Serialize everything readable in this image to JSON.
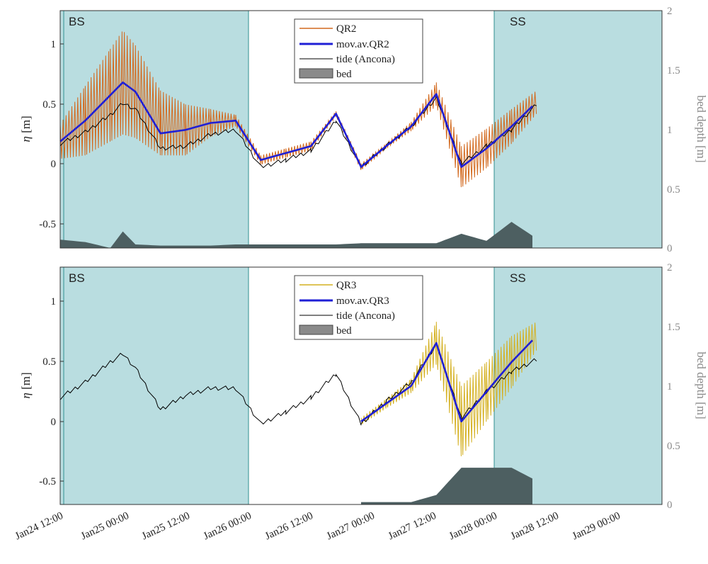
{
  "figure": {
    "x_ticks": [
      "Jan24 12:00",
      "Jan25 00:00",
      "Jan25 12:00",
      "Jan26 00:00",
      "Jan26 12:00",
      "Jan27 00:00",
      "Jan27 12:00",
      "Jan28 00:00",
      "Jan28 12:00",
      "Jan29 00:00"
    ],
    "y_ticks_left": [
      "1",
      "0.5",
      "0",
      "-0.5"
    ],
    "y_ticks_right": [
      "2",
      "1.5",
      "1",
      "0.5",
      "0"
    ],
    "ylabel_left_symbol": "η",
    "ylabel_left_unit": " [m]",
    "ylabel_right": "bed depth [m]",
    "region_bs": "BS",
    "region_ss": "SS",
    "colors": {
      "shade": "#b9dde0",
      "region_edge": "#2f8f8f",
      "mov_av": "#1f1fd6",
      "tide": "#000000",
      "bed": "#4d5f61",
      "qr2": "#d2691e",
      "qr3": "#d4b020",
      "right_axis": "#8a8a8a"
    }
  },
  "chart_data": [
    {
      "type": "line",
      "panel": "top",
      "xlabel": "",
      "ylabel": "η [m]",
      "ylabel_right": "bed depth [m]",
      "ylim": [
        -0.7,
        1.35
      ],
      "ylim_right": [
        0,
        2
      ],
      "xlim": [
        "Jan24 12:00",
        "Jan29 12:00"
      ],
      "x_hours": [
        12,
        18,
        24,
        27,
        30,
        36,
        42,
        48,
        54,
        60,
        66,
        72,
        78,
        84,
        90,
        96,
        102,
        108,
        114,
        120,
        126,
        132,
        138,
        144,
        150,
        156
      ],
      "shaded_regions": [
        {
          "label": "BS",
          "start_hour": 12,
          "end_hour": 48
        },
        {
          "label": "SS",
          "start_hour": 96,
          "end_hour": 156
        }
      ],
      "legend": [
        "QR2",
        "mov.av.QR2",
        "tide (Ancona)",
        "bed"
      ],
      "series": [
        {
          "name": "QR2",
          "kind": "oscillating",
          "center": [
            0.22,
            0.4,
            0.62,
            0.73,
            0.65,
            0.38,
            0.32,
            0.38,
            0.4,
            0.06,
            0.12,
            0.18,
            0.46,
            0.0,
            0.18,
            0.35,
            0.63,
            0.0,
            0.16,
            0.35,
            0.56,
            null,
            null,
            null,
            null,
            null
          ],
          "amplitude": [
            0.15,
            0.3,
            0.4,
            0.45,
            0.4,
            0.28,
            0.22,
            0.12,
            0.05,
            0.04,
            0.04,
            0.04,
            0.02,
            0.03,
            0.02,
            0.04,
            0.1,
            0.18,
            0.17,
            0.15,
            0.1,
            null,
            null,
            null,
            null,
            null
          ]
        },
        {
          "name": "mov.av.QR2",
          "values": [
            0.22,
            0.4,
            0.62,
            0.73,
            0.65,
            0.29,
            0.32,
            0.38,
            0.4,
            0.06,
            0.12,
            0.18,
            0.46,
            0.0,
            0.18,
            0.35,
            0.63,
            0.0,
            0.16,
            0.35,
            0.56,
            null,
            null,
            null,
            null,
            null
          ]
        },
        {
          "name": "tide (Ancona)",
          "values": [
            0.2,
            0.3,
            0.45,
            0.55,
            0.5,
            0.16,
            0.18,
            0.28,
            0.32,
            0.0,
            0.06,
            0.14,
            0.4,
            0.0,
            0.18,
            0.35,
            0.6,
            0.03,
            0.18,
            0.32,
            0.54,
            null,
            null,
            null,
            null,
            null
          ]
        },
        {
          "name": "bed",
          "values": [
            0.07,
            0.05,
            0.0,
            0.14,
            0.03,
            0.02,
            0.02,
            0.02,
            0.03,
            0.03,
            0.03,
            0.03,
            0.03,
            0.04,
            0.04,
            0.04,
            0.04,
            0.12,
            0.06,
            0.22,
            0.08,
            null,
            null,
            null,
            null,
            null
          ]
        }
      ]
    },
    {
      "type": "line",
      "panel": "bottom",
      "xlabel": "",
      "ylabel": "η [m]",
      "ylabel_right": "bed depth [m]",
      "ylim": [
        -0.7,
        1.3
      ],
      "ylim_right": [
        0,
        2
      ],
      "xlim": [
        "Jan24 12:00",
        "Jan29 12:00"
      ],
      "x_hours": [
        12,
        18,
        24,
        27,
        30,
        36,
        42,
        48,
        54,
        60,
        66,
        72,
        78,
        84,
        90,
        96,
        102,
        108,
        114,
        120,
        126,
        132,
        138,
        144,
        150,
        156
      ],
      "shaded_regions": [
        {
          "label": "BS",
          "start_hour": 12,
          "end_hour": 48
        },
        {
          "label": "SS",
          "start_hour": 96,
          "end_hour": 156
        }
      ],
      "legend": [
        "QR3",
        "mov.av.QR3",
        "tide (Ancona)",
        "bed"
      ],
      "series": [
        {
          "name": "QR3",
          "kind": "oscillating",
          "center": [
            null,
            null,
            null,
            null,
            null,
            null,
            null,
            null,
            null,
            null,
            null,
            null,
            null,
            0.0,
            0.15,
            0.3,
            0.66,
            0.0,
            0.25,
            0.5,
            0.72,
            null,
            null,
            null,
            null,
            null
          ],
          "amplitude": [
            null,
            null,
            null,
            null,
            null,
            null,
            null,
            null,
            null,
            null,
            null,
            null,
            null,
            0.03,
            0.04,
            0.06,
            0.18,
            0.3,
            0.25,
            0.22,
            0.12,
            null,
            null,
            null,
            null,
            null
          ]
        },
        {
          "name": "mov.av.QR3",
          "values": [
            null,
            null,
            null,
            null,
            null,
            null,
            null,
            null,
            null,
            null,
            null,
            null,
            null,
            0.0,
            0.15,
            0.3,
            0.66,
            0.0,
            0.25,
            0.5,
            0.72,
            null,
            null,
            null,
            null,
            null
          ]
        },
        {
          "name": "tide (Ancona)",
          "values": [
            0.2,
            0.33,
            0.5,
            0.57,
            0.45,
            0.1,
            0.22,
            0.28,
            0.28,
            -0.02,
            0.08,
            0.2,
            0.4,
            -0.02,
            0.17,
            0.33,
            0.65,
            0.03,
            0.25,
            0.42,
            0.52,
            null,
            null,
            null,
            null,
            null
          ]
        },
        {
          "name": "bed",
          "values": [
            null,
            null,
            null,
            null,
            null,
            null,
            null,
            null,
            null,
            null,
            null,
            null,
            null,
            0.02,
            0.02,
            0.02,
            0.08,
            0.31,
            0.31,
            0.31,
            0.2,
            null,
            null,
            null,
            null,
            null
          ]
        }
      ]
    }
  ]
}
